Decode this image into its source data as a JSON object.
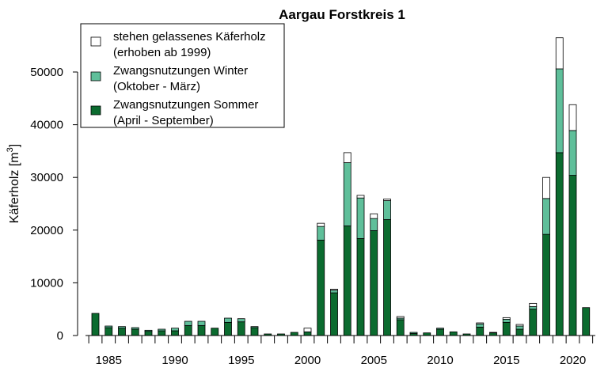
{
  "chart_data": {
    "type": "bar",
    "stacked": true,
    "title": "Aargau Forstkreis 1",
    "ylabel": "Käferholz [m",
    "ylabel_unit_superscript": "3",
    "ylabel_close": "]",
    "xlabel": "",
    "ylim": [
      0,
      58000
    ],
    "yticks": [
      0,
      10000,
      20000,
      30000,
      40000,
      50000
    ],
    "xticks": [
      1985,
      1990,
      1995,
      2000,
      2005,
      2010,
      2015,
      2020
    ],
    "legend_position": "top-left",
    "categories": [
      1984,
      1985,
      1986,
      1987,
      1988,
      1989,
      1990,
      1991,
      1992,
      1993,
      1994,
      1995,
      1996,
      1997,
      1998,
      1999,
      2000,
      2001,
      2002,
      2003,
      2004,
      2005,
      2006,
      2007,
      2008,
      2009,
      2010,
      2011,
      2012,
      2013,
      2014,
      2015,
      2016,
      2017,
      2018,
      2019,
      2020,
      2021
    ],
    "series": [
      {
        "name": "Zwangsnutzungen Sommer",
        "name_line2": "(April - September)",
        "color": "#0b6b2f",
        "values": [
          4200,
          1500,
          1400,
          1200,
          800,
          900,
          900,
          1900,
          1900,
          1400,
          2500,
          2600,
          1500,
          300,
          300,
          600,
          700,
          18100,
          8100,
          20800,
          18400,
          19900,
          22000,
          3000,
          400,
          500,
          1200,
          700,
          300,
          1600,
          500,
          2500,
          1200,
          5000,
          19200,
          34700,
          30400,
          5300
        ]
      },
      {
        "name": "Zwangsnutzungen Winter",
        "name_line2": "(Oktober - März)",
        "color": "#5fbf9a",
        "values": [
          0,
          300,
          300,
          300,
          200,
          300,
          500,
          800,
          800,
          0,
          800,
          600,
          200,
          0,
          0,
          0,
          0,
          2600,
          500,
          12000,
          7700,
          2300,
          3600,
          300,
          200,
          0,
          200,
          0,
          0,
          600,
          100,
          600,
          600,
          500,
          6800,
          15900,
          8500,
          0
        ]
      },
      {
        "name": "stehen gelassenes Käferholz",
        "name_line2": "(erhoben ab 1999)",
        "color": "#ffffff",
        "values": [
          0,
          0,
          0,
          0,
          0,
          0,
          0,
          0,
          0,
          0,
          0,
          0,
          0,
          0,
          0,
          0,
          700,
          600,
          200,
          1900,
          500,
          900,
          300,
          300,
          0,
          0,
          0,
          0,
          0,
          200,
          0,
          300,
          300,
          600,
          4000,
          5900,
          4900,
          0
        ]
      }
    ]
  }
}
